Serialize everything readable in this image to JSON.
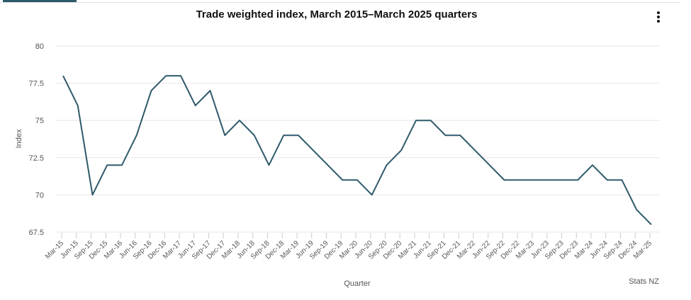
{
  "chart_data": {
    "type": "line",
    "title": "Trade weighted index, March 2015–March 2025 quarters",
    "xlabel": "Quarter",
    "ylabel": "Index",
    "source": "Stats NZ",
    "ylim": [
      67.5,
      80
    ],
    "yticks": [
      "67.5",
      "70",
      "72.5",
      "75",
      "77.5",
      "80"
    ],
    "grid": true,
    "color": "#2e5a6b",
    "categories": [
      "Mar-15",
      "Jun-15",
      "Sep-15",
      "Dec-15",
      "Mar-16",
      "Jun-16",
      "Sep-16",
      "Dec-16",
      "Mar-17",
      "Jun-17",
      "Sep-17",
      "Dec-17",
      "Mar-18",
      "Jun-18",
      "Sep-18",
      "Dec-18",
      "Mar-19",
      "Jun-19",
      "Sep-19",
      "Dec-19",
      "Mar-20",
      "Jun-20",
      "Sep-20",
      "Dec-20",
      "Mar-21",
      "Jun-21",
      "Sep-21",
      "Dec-21",
      "Mar-22",
      "Jun-22",
      "Sep-22",
      "Dec-22",
      "Mar-23",
      "Jun-23",
      "Sep-23",
      "Dec-23",
      "Mar-24",
      "Jun-24",
      "Sep-24",
      "Dec-24",
      "Mar-25"
    ],
    "series": [
      {
        "name": "Index",
        "values": [
          78,
          76,
          70,
          72,
          72,
          74,
          77,
          78,
          78,
          76,
          77,
          74,
          75,
          74,
          72,
          74,
          74,
          73,
          72,
          71,
          71,
          70,
          72,
          73,
          75,
          75,
          74,
          74,
          73,
          72,
          71,
          71,
          71,
          71,
          71,
          71,
          72,
          71,
          71,
          69,
          68
        ]
      }
    ]
  }
}
